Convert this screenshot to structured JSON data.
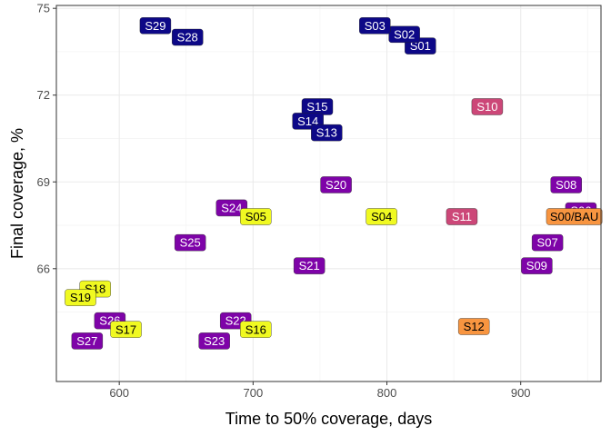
{
  "chart_data": {
    "type": "scatter",
    "title": "",
    "xlabel": "Time to 50% coverage, days",
    "ylabel": "Final coverage, %",
    "xlim": [
      553,
      960
    ],
    "ylim": [
      62.1,
      75.1
    ],
    "x_ticks": [
      600,
      700,
      800,
      900
    ],
    "x_tick_labels": [
      "600",
      "700",
      "800",
      "900"
    ],
    "y_ticks": [
      66,
      69,
      72,
      75
    ],
    "y_tick_labels": [
      "66",
      "69",
      "72",
      "75"
    ],
    "grid": true,
    "legend": "none",
    "colors": {
      "navy": "#0d0887",
      "purple": "#7e03a8",
      "magenta": "#cc4778",
      "orange": "#f89540",
      "yellow": "#f0f921"
    },
    "points": [
      {
        "label": "S01",
        "x": 825,
        "y": 73.7,
        "color": "navy"
      },
      {
        "label": "S02",
        "x": 813,
        "y": 74.1,
        "color": "navy"
      },
      {
        "label": "S03",
        "x": 791,
        "y": 74.4,
        "color": "navy"
      },
      {
        "label": "S28",
        "x": 651,
        "y": 74.0,
        "color": "navy"
      },
      {
        "label": "S29",
        "x": 627,
        "y": 74.4,
        "color": "navy"
      },
      {
        "label": "S15",
        "x": 748,
        "y": 71.6,
        "color": "navy"
      },
      {
        "label": "S14",
        "x": 741,
        "y": 71.1,
        "color": "navy"
      },
      {
        "label": "S13",
        "x": 755,
        "y": 70.7,
        "color": "navy"
      },
      {
        "label": "S10",
        "x": 875,
        "y": 71.6,
        "color": "magenta"
      },
      {
        "label": "S11",
        "x": 856,
        "y": 67.8,
        "color": "magenta"
      },
      {
        "label": "S20",
        "x": 762,
        "y": 68.9,
        "color": "purple"
      },
      {
        "label": "S08",
        "x": 934,
        "y": 68.9,
        "color": "purple"
      },
      {
        "label": "S06",
        "x": 945,
        "y": 68.0,
        "color": "purple"
      },
      {
        "label": "S07",
        "x": 920,
        "y": 66.9,
        "color": "purple"
      },
      {
        "label": "S09",
        "x": 912,
        "y": 66.1,
        "color": "purple"
      },
      {
        "label": "S24",
        "x": 684,
        "y": 68.1,
        "color": "purple"
      },
      {
        "label": "S25",
        "x": 653,
        "y": 66.9,
        "color": "purple"
      },
      {
        "label": "S21",
        "x": 742,
        "y": 66.1,
        "color": "purple"
      },
      {
        "label": "S26",
        "x": 593,
        "y": 64.2,
        "color": "purple"
      },
      {
        "label": "S22",
        "x": 687,
        "y": 64.2,
        "color": "purple"
      },
      {
        "label": "S27",
        "x": 576,
        "y": 63.5,
        "color": "purple"
      },
      {
        "label": "S23",
        "x": 671,
        "y": 63.5,
        "color": "purple"
      },
      {
        "label": "S05",
        "x": 702,
        "y": 67.8,
        "color": "yellow"
      },
      {
        "label": "S04",
        "x": 796,
        "y": 67.8,
        "color": "yellow"
      },
      {
        "label": "S18",
        "x": 582,
        "y": 65.3,
        "color": "yellow"
      },
      {
        "label": "S19",
        "x": 571,
        "y": 65.0,
        "color": "yellow"
      },
      {
        "label": "S17",
        "x": 605,
        "y": 63.9,
        "color": "yellow"
      },
      {
        "label": "S16",
        "x": 702,
        "y": 63.9,
        "color": "yellow"
      },
      {
        "label": "S12",
        "x": 865,
        "y": 64.0,
        "color": "orange"
      },
      {
        "label": "S00/BAU",
        "x": 940,
        "y": 67.8,
        "color": "orange"
      }
    ]
  }
}
